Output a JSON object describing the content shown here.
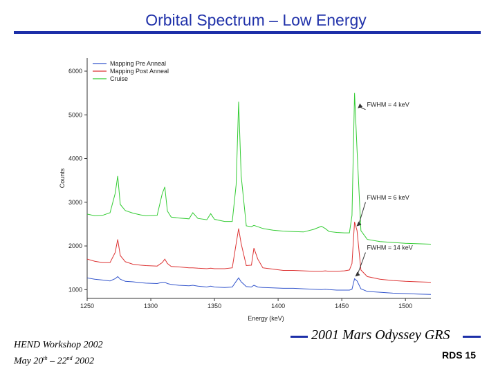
{
  "slide": {
    "title": "Orbital Spectrum – Low Energy",
    "footer_line1": "HEND Workshop 2002",
    "footer_line2_prefix": "May 20",
    "footer_line2_sup1": "th",
    "footer_line2_mid": " – 22",
    "footer_line2_sup2": "nd",
    "footer_line2_suffix": " 2002",
    "mission": "2001 Mars Odyssey GRS",
    "page_label": "RDS 15"
  },
  "colors": {
    "title": "#2233aa",
    "rule": "#1c2fa8",
    "pre_anneal": "#3355cc",
    "post_anneal": "#dd3333",
    "cruise": "#33cc33"
  },
  "chart_data": {
    "type": "line",
    "xlabel": "Energy (keV)",
    "ylabel": "Counts",
    "xlim": [
      1250,
      1520
    ],
    "ylim": [
      800,
      6300
    ],
    "xticks": [
      1250,
      1300,
      1350,
      1400,
      1450,
      1500
    ],
    "yticks": [
      1000,
      2000,
      3000,
      4000,
      5000,
      6000
    ],
    "legend": [
      "Mapping Pre Anneal",
      "Mapping Post Anneal",
      "Cruise"
    ],
    "legend_position": "top-left",
    "x": [
      1250,
      1256,
      1262,
      1268,
      1272,
      1274,
      1276,
      1280,
      1286,
      1292,
      1296,
      1305,
      1309,
      1311,
      1313,
      1316,
      1322,
      1330,
      1333,
      1337,
      1344,
      1347,
      1350,
      1358,
      1364,
      1367,
      1369,
      1371,
      1375,
      1379,
      1381,
      1384,
      1388,
      1396,
      1404,
      1412,
      1420,
      1428,
      1434,
      1437,
      1440,
      1446,
      1452,
      1456,
      1458,
      1460,
      1462,
      1465,
      1470,
      1480,
      1490,
      1500,
      1510,
      1520
    ],
    "series": [
      {
        "name": "Mapping Pre Anneal",
        "values": [
          1270,
          1240,
          1220,
          1200,
          1250,
          1300,
          1240,
          1190,
          1180,
          1160,
          1150,
          1140,
          1170,
          1170,
          1140,
          1120,
          1100,
          1090,
          1100,
          1080,
          1060,
          1080,
          1060,
          1050,
          1060,
          1190,
          1270,
          1180,
          1070,
          1060,
          1100,
          1060,
          1050,
          1040,
          1030,
          1030,
          1020,
          1010,
          1000,
          1010,
          1000,
          990,
          990,
          990,
          1010,
          1250,
          1200,
          1020,
          960,
          940,
          920,
          910,
          900,
          890
        ]
      },
      {
        "name": "Mapping Post Anneal",
        "values": [
          1700,
          1650,
          1620,
          1620,
          1850,
          2150,
          1780,
          1640,
          1580,
          1560,
          1550,
          1540,
          1620,
          1700,
          1600,
          1530,
          1520,
          1500,
          1500,
          1490,
          1480,
          1490,
          1480,
          1480,
          1500,
          2050,
          2400,
          2050,
          1550,
          1560,
          1950,
          1700,
          1500,
          1470,
          1440,
          1440,
          1430,
          1420,
          1420,
          1430,
          1420,
          1420,
          1430,
          1450,
          1600,
          2550,
          2350,
          1450,
          1300,
          1240,
          1210,
          1190,
          1180,
          1170
        ]
      },
      {
        "name": "Cruise",
        "values": [
          2730,
          2690,
          2700,
          2760,
          3200,
          3600,
          2950,
          2810,
          2750,
          2710,
          2690,
          2700,
          3200,
          3350,
          2800,
          2660,
          2640,
          2620,
          2760,
          2630,
          2600,
          2740,
          2610,
          2560,
          2560,
          3400,
          5300,
          3600,
          2460,
          2440,
          2470,
          2440,
          2400,
          2360,
          2340,
          2330,
          2320,
          2380,
          2450,
          2400,
          2330,
          2310,
          2300,
          2300,
          2700,
          5500,
          4200,
          2350,
          2150,
          2100,
          2080,
          2060,
          2050,
          2040
        ]
      }
    ],
    "annotations": [
      {
        "text": "FWHM = 4 keV",
        "x": 1460,
        "y": 5100
      },
      {
        "text": "FWHM = 6 keV",
        "x": 1460,
        "y": 2600
      },
      {
        "text": "FWHM = 14 keV",
        "x": 1460,
        "y": 1700
      }
    ]
  }
}
